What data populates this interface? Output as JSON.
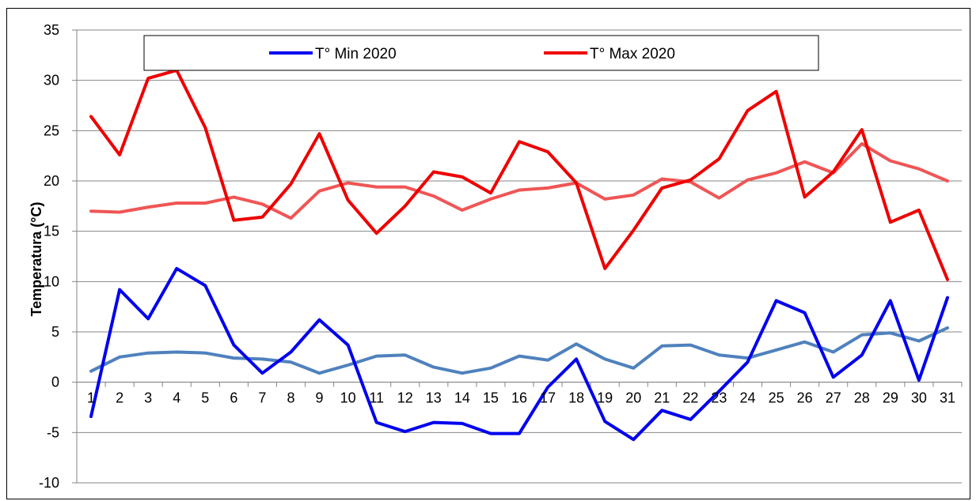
{
  "chart_data": {
    "type": "line",
    "title": "",
    "ylabel": "Temperatura (°C)",
    "xlabel": "",
    "ylim": [
      -10,
      35
    ],
    "yticks": [
      -10,
      -5,
      0,
      5,
      10,
      15,
      20,
      25,
      30,
      35
    ],
    "ytick_labels": [
      "-10",
      "-5",
      "0",
      "5",
      "10",
      "15",
      "20",
      "25",
      "30",
      "35"
    ],
    "grid": true,
    "legend_position": "top",
    "categories": [
      "1",
      "2",
      "3",
      "4",
      "5",
      "6",
      "7",
      "8",
      "9",
      "10",
      "11",
      "12",
      "13",
      "14",
      "15",
      "16",
      "17",
      "18",
      "19",
      "20",
      "21",
      "22",
      "23",
      "24",
      "25",
      "26",
      "27",
      "28",
      "29",
      "30",
      "31"
    ],
    "series": [
      {
        "name": "T° Min 2020",
        "color": "#0000ee",
        "in_legend": true,
        "values": [
          -3.4,
          9.2,
          6.3,
          11.3,
          9.6,
          3.7,
          0.9,
          3.0,
          6.2,
          3.7,
          -4.0,
          -4.9,
          -4.0,
          -4.1,
          -5.1,
          -5.1,
          -0.5,
          2.3,
          -3.9,
          -5.7,
          -2.8,
          -3.7,
          -0.9,
          2.0,
          8.1,
          6.9,
          0.5,
          2.7,
          8.1,
          0.2,
          8.4
        ]
      },
      {
        "name": "T° Max 2020",
        "color": "#ee0000",
        "in_legend": true,
        "values": [
          26.4,
          22.6,
          30.2,
          31.0,
          25.3,
          16.1,
          16.4,
          19.7,
          24.7,
          18.1,
          14.8,
          17.5,
          20.9,
          20.4,
          18.8,
          23.9,
          22.9,
          19.8,
          11.3,
          15.1,
          19.3,
          20.1,
          22.2,
          27.0,
          28.9,
          18.4,
          20.9,
          25.1,
          15.9,
          17.1,
          10.2
        ]
      },
      {
        "name": "",
        "color": "#4f81bd",
        "in_legend": false,
        "values": [
          1.1,
          2.5,
          2.9,
          3.0,
          2.9,
          2.4,
          2.3,
          2.0,
          0.9,
          1.7,
          2.6,
          2.7,
          1.5,
          0.9,
          1.4,
          2.6,
          2.2,
          3.8,
          2.3,
          1.4,
          3.6,
          3.7,
          2.7,
          2.4,
          3.2,
          4.0,
          3.0,
          4.7,
          4.9,
          4.1,
          5.4
        ]
      },
      {
        "name": "",
        "color": "#f05555",
        "in_legend": false,
        "values": [
          17.0,
          16.9,
          17.4,
          17.8,
          17.8,
          18.4,
          17.7,
          16.3,
          19.0,
          19.8,
          19.4,
          19.4,
          18.5,
          17.1,
          18.2,
          19.1,
          19.3,
          19.8,
          18.2,
          18.6,
          20.2,
          19.9,
          18.3,
          20.1,
          20.8,
          21.9,
          20.8,
          23.7,
          22.0,
          21.2,
          20.0
        ]
      }
    ]
  }
}
